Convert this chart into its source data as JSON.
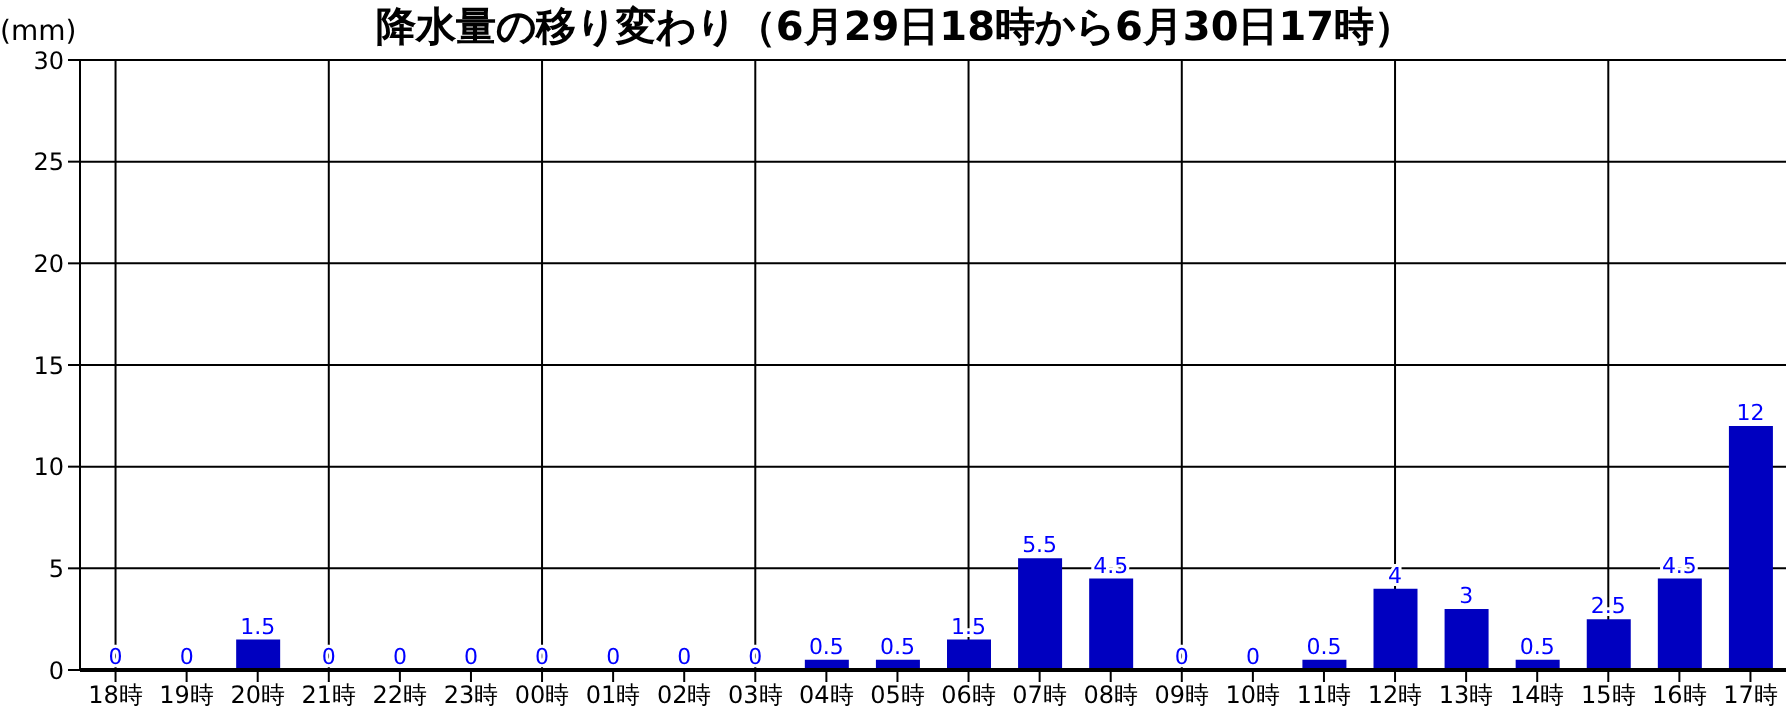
{
  "chart_data": {
    "type": "bar",
    "title": "降水量の移り変わり（6月29日18時から6月30日17時）",
    "ylabel": "(mm)",
    "categories": [
      "18時",
      "19時",
      "20時",
      "21時",
      "22時",
      "23時",
      "00時",
      "01時",
      "02時",
      "03時",
      "04時",
      "05時",
      "06時",
      "07時",
      "08時",
      "09時",
      "10時",
      "11時",
      "12時",
      "13時",
      "14時",
      "15時",
      "16時",
      "17時"
    ],
    "values": [
      0,
      0,
      1.5,
      0,
      0,
      0,
      0,
      0,
      0,
      0,
      0.5,
      0.5,
      1.5,
      5.5,
      4.5,
      0,
      0,
      0.5,
      4,
      3,
      0.5,
      2.5,
      4.5,
      12
    ],
    "color": "#0000c0",
    "ylim": [
      0,
      30
    ],
    "yticks": [
      0,
      5,
      10,
      15,
      20,
      25,
      30
    ],
    "grid": true,
    "data_labels": true
  }
}
